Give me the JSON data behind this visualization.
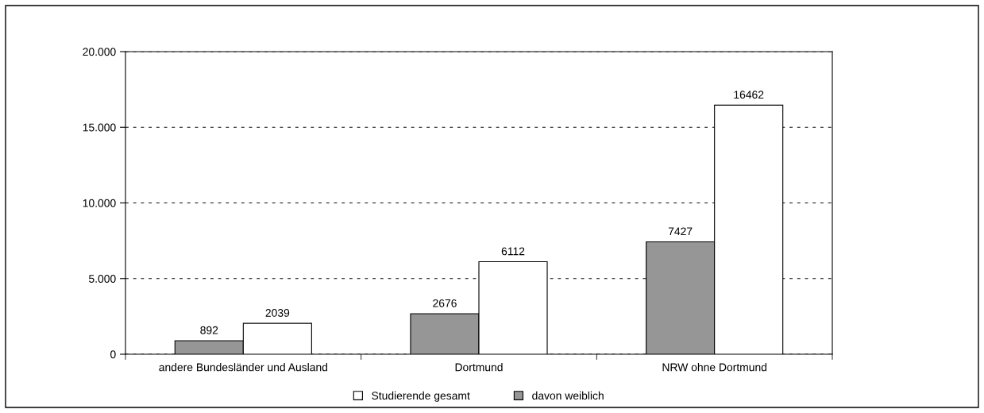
{
  "chart_data": {
    "type": "bar",
    "categories": [
      "andere Bundesländer und Ausland",
      "Dortmund",
      "NRW ohne Dortmund"
    ],
    "series": [
      {
        "name": "davon weiblich",
        "color": "#969696",
        "values": [
          892,
          2676,
          7427
        ]
      },
      {
        "name": "Studierende gesamt",
        "color": "#ffffff",
        "values": [
          2039,
          6112,
          16462
        ]
      }
    ],
    "ylim": [
      0,
      20000
    ],
    "yticks": [
      0,
      {
        "value": 5000,
        "label": "5.000"
      },
      {
        "value": 10000,
        "label": "10.000"
      },
      {
        "value": 15000,
        "label": "15.000"
      },
      {
        "value": 20000,
        "label": "20.000"
      }
    ],
    "grid": "y",
    "line_style": "dashed",
    "legend": "bottom",
    "data_labels": true
  }
}
